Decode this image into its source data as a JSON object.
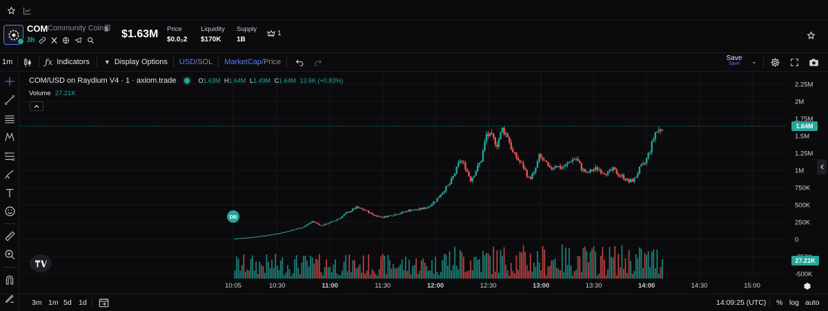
{
  "topbar": {
    "icons": [
      "star-icon",
      "chart-icon"
    ]
  },
  "token": {
    "symbol": "COM",
    "name": "Community Coin",
    "age": "3h",
    "market_cap": "$1.63M",
    "stats": [
      {
        "label": "Price",
        "value": "$0.0₂2"
      },
      {
        "label": "Liquidity",
        "value": "$170K"
      },
      {
        "label": "Supply",
        "value": "1B"
      }
    ],
    "holders_count": "1"
  },
  "toolbar": {
    "interval": "1m",
    "indicators_label": "Indicators",
    "display_options_label": "Display Options",
    "currency_active": "USD",
    "currency_sep": "/",
    "currency_other": "SOL",
    "mode_active": "MarketCap",
    "mode_sep": "/",
    "mode_other": "Price",
    "save_label": "Save",
    "save_sub": "Save"
  },
  "legend": {
    "pair": "COM/USD on Raydium V4 · 1 · axiom.trade",
    "o_label": "O",
    "o": "1.63M",
    "h_label": "H",
    "h": "1.64M",
    "l_label": "L",
    "l": "1.49M",
    "c_label": "C",
    "c": "1.64M",
    "change": "13.6K (+0.83%)",
    "volume_label": "Volume",
    "volume_value": "27.21K"
  },
  "marker_label": "DB",
  "bottom": {
    "ranges": [
      "3m",
      "1m",
      "5d",
      "1d"
    ],
    "time": "14:09:25 (UTC)",
    "percent": "%",
    "log": "log",
    "auto": "auto"
  },
  "colors": {
    "up": "#26a69a",
    "down": "#ef5350",
    "accent": "#5b7cff",
    "bg": "#0b0b0d"
  },
  "chart_data": {
    "type": "candlestick",
    "title": "COM/USD on Raydium V4 · 1 · axiom.trade",
    "y_ticks": [
      "2.25M",
      "2M",
      "1.75M",
      "1.5M",
      "1.25M",
      "1M",
      "750K",
      "500K",
      "250K",
      "0",
      "-250K",
      "-500K"
    ],
    "y_tick_values": [
      2250000,
      2000000,
      1750000,
      1500000,
      1250000,
      1000000,
      750000,
      500000,
      250000,
      0,
      -250000,
      -500000
    ],
    "x_ticks": [
      "10:05",
      "10:30",
      "11:00",
      "11:30",
      "12:00",
      "12:30",
      "13:00",
      "13:30",
      "14:00",
      "14:30",
      "15:00"
    ],
    "x_tick_bold": [
      false,
      false,
      true,
      false,
      true,
      false,
      true,
      false,
      true,
      false,
      false
    ],
    "x_minutes": [
      605,
      630,
      660,
      690,
      720,
      750,
      780,
      810,
      840,
      870,
      900
    ],
    "last_price_label": "1.64M",
    "last_volume_label": "27.21K",
    "ylim": [
      -500000,
      2250000
    ],
    "grid": true,
    "price_path": [
      [
        605,
        8000
      ],
      [
        615,
        30000
      ],
      [
        625,
        60000
      ],
      [
        635,
        110000
      ],
      [
        645,
        180000
      ],
      [
        650,
        260000
      ],
      [
        655,
        200000
      ],
      [
        660,
        240000
      ],
      [
        665,
        300000
      ],
      [
        670,
        390000
      ],
      [
        675,
        460000
      ],
      [
        680,
        420000
      ],
      [
        685,
        350000
      ],
      [
        690,
        320000
      ],
      [
        695,
        350000
      ],
      [
        700,
        380000
      ],
      [
        705,
        420000
      ],
      [
        710,
        430000
      ],
      [
        715,
        460000
      ],
      [
        720,
        560000
      ],
      [
        725,
        720000
      ],
      [
        728,
        800000
      ],
      [
        731,
        960000
      ],
      [
        734,
        1150000
      ],
      [
        737,
        1050000
      ],
      [
        740,
        860000
      ],
      [
        743,
        1000000
      ],
      [
        746,
        1150000
      ],
      [
        749,
        1520000
      ],
      [
        752,
        1480000
      ],
      [
        755,
        1380000
      ],
      [
        758,
        1600000
      ],
      [
        761,
        1500000
      ],
      [
        764,
        1250000
      ],
      [
        767,
        1150000
      ],
      [
        770,
        1050000
      ],
      [
        773,
        880000
      ],
      [
        776,
        950000
      ],
      [
        779,
        1200000
      ],
      [
        782,
        1120000
      ],
      [
        785,
        1010000
      ],
      [
        788,
        1080000
      ],
      [
        791,
        1040000
      ],
      [
        794,
        1060000
      ],
      [
        797,
        1150000
      ],
      [
        800,
        1170000
      ],
      [
        803,
        1030000
      ],
      [
        806,
        950000
      ],
      [
        809,
        1000000
      ],
      [
        812,
        1030000
      ],
      [
        815,
        980000
      ],
      [
        818,
        960000
      ],
      [
        821,
        1010000
      ],
      [
        824,
        940000
      ],
      [
        827,
        900000
      ],
      [
        830,
        830000
      ],
      [
        833,
        870000
      ],
      [
        836,
        1020000
      ],
      [
        839,
        1100000
      ],
      [
        842,
        1300000
      ],
      [
        845,
        1550000
      ],
      [
        848,
        1600000
      ],
      [
        849,
        1640000
      ]
    ]
  }
}
